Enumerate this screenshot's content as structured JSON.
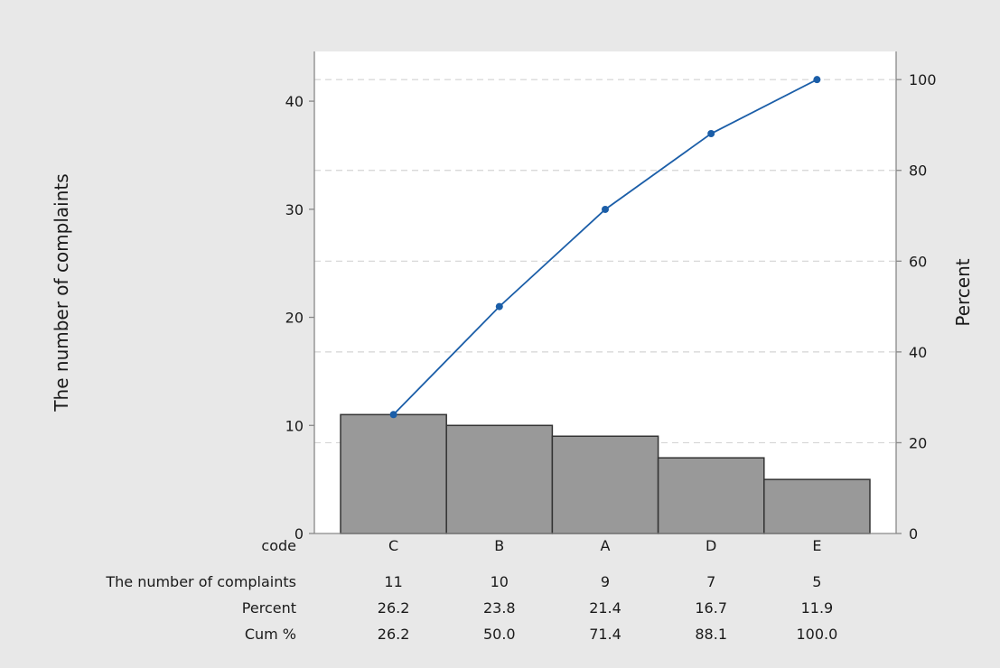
{
  "colors": {
    "figure_background": "#e8e8e8",
    "plot_background": "#ffffff",
    "bar_fill": "#999999",
    "bar_stroke": "#333333",
    "line_color": "#1b5ea8",
    "grid_color": "#d4d4d4",
    "axis_color": "#888888"
  },
  "chart_data": {
    "type": "bar",
    "subtype": "pareto",
    "ylabel": "The number of complaints",
    "y2label": "Percent",
    "ylim": [
      0,
      44.6
    ],
    "y2lim": [
      0,
      106.2
    ],
    "yticks": [
      0,
      10,
      20,
      30,
      40
    ],
    "y2ticks": [
      0,
      20,
      40,
      60,
      80,
      100
    ],
    "grid": "horizontal dashed, right axis",
    "categories": [
      "C",
      "B",
      "A",
      "D",
      "E"
    ],
    "series": [
      {
        "name": "The number of complaints",
        "type": "bar",
        "values": [
          11,
          10,
          9,
          7,
          5
        ]
      },
      {
        "name": "Cum %",
        "type": "line",
        "axis": "right",
        "values": [
          26.2,
          50.0,
          71.4,
          88.1,
          100.0
        ]
      }
    ],
    "table": {
      "header_label": "code",
      "rows": [
        {
          "label": "The number of complaints",
          "values": [
            "11",
            "10",
            "9",
            "7",
            "5"
          ]
        },
        {
          "label": "Percent",
          "values": [
            "26.2",
            "23.8",
            "21.4",
            "16.7",
            "11.9"
          ]
        },
        {
          "label": "Cum %",
          "values": [
            "26.2",
            "50.0",
            "71.4",
            "88.1",
            "100.0"
          ]
        }
      ]
    }
  }
}
